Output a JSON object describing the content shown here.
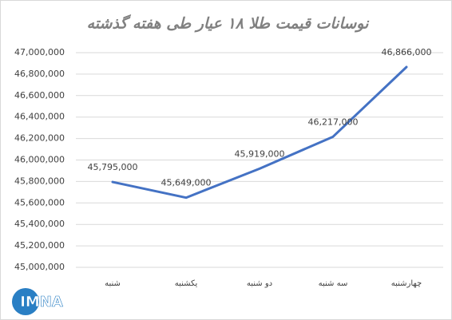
{
  "chart_data": {
    "type": "line",
    "title": "نوسانات قیمت طلا ۱۸ عیار طی هفته گذشته",
    "categories": [
      "شنبه",
      "یکشنبه",
      "دو شنبه",
      "سه شنبه",
      "چهارشنبه"
    ],
    "values": [
      45795000,
      45649000,
      45919000,
      46217000,
      46866000
    ],
    "value_labels": [
      "45,795,000",
      "45,649,000",
      "45,919,000",
      "46,217,000",
      "46,866,000"
    ],
    "color": "#4472c4",
    "ylim": [
      45000000,
      47000000
    ],
    "yticks": [
      {
        "value": 45000000,
        "label": "45,000,000"
      },
      {
        "value": 45200000,
        "label": "45,200,000"
      },
      {
        "value": 45400000,
        "label": "45,400,000"
      },
      {
        "value": 45600000,
        "label": "45,600,000"
      },
      {
        "value": 45800000,
        "label": "45,800,000"
      },
      {
        "value": 46000000,
        "label": "46,000,000"
      },
      {
        "value": 46200000,
        "label": "46,200,000"
      },
      {
        "value": 46400000,
        "label": "46,400,000"
      },
      {
        "value": 46600000,
        "label": "46,600,000"
      },
      {
        "value": 46800000,
        "label": "46,800,000"
      },
      {
        "value": 47000000,
        "label": "47,000,000"
      }
    ],
    "grid": true
  },
  "logo": "IMNA"
}
